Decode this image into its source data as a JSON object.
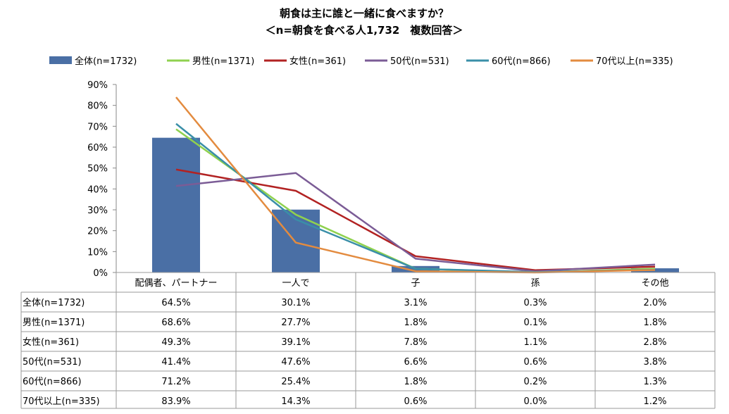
{
  "chart_data": {
    "type": "bar+line",
    "title": "朝食は主に誰と一緒に食べますか？",
    "subtitle": "＜n=朝食を食べる人1,732　複数回答＞",
    "categories": [
      "配偶者、パートナー",
      "一人で",
      "子",
      "孫",
      "その他"
    ],
    "yticks": [
      "0%",
      "10%",
      "20%",
      "30%",
      "40%",
      "50%",
      "60%",
      "70%",
      "80%",
      "90%"
    ],
    "ylim": [
      0,
      90
    ],
    "legend_position": "top",
    "series": [
      {
        "name": "全体(n=1732)",
        "kind": "bar",
        "color": "#4A6FA5",
        "values": [
          64.5,
          30.1,
          3.1,
          0.3,
          2.0
        ],
        "labels": [
          "64.5%",
          "30.1%",
          "3.1%",
          "0.3%",
          "2.0%"
        ]
      },
      {
        "name": "男性(n=1371)",
        "kind": "line",
        "color": "#8FD14F",
        "values": [
          68.6,
          27.7,
          1.8,
          0.1,
          1.8
        ],
        "labels": [
          "68.6%",
          "27.7%",
          "1.8%",
          "0.1%",
          "1.8%"
        ]
      },
      {
        "name": "女性(n=361)",
        "kind": "line",
        "color": "#B22222",
        "values": [
          49.3,
          39.1,
          7.8,
          1.1,
          2.8
        ],
        "labels": [
          "49.3%",
          "39.1%",
          "7.8%",
          "1.1%",
          "2.8%"
        ]
      },
      {
        "name": "50代(n=531)",
        "kind": "line",
        "color": "#7B5C96",
        "values": [
          41.4,
          47.6,
          6.6,
          0.6,
          3.8
        ],
        "labels": [
          "41.4%",
          "47.6%",
          "6.6%",
          "0.6%",
          "3.8%"
        ]
      },
      {
        "name": "60代(n=866)",
        "kind": "line",
        "color": "#3A8FA8",
        "values": [
          71.2,
          25.4,
          1.8,
          0.2,
          1.3
        ],
        "labels": [
          "71.2%",
          "25.4%",
          "1.8%",
          "0.2%",
          "1.3%"
        ]
      },
      {
        "name": "70代以上(n=335)",
        "kind": "line",
        "color": "#E38B3F",
        "values": [
          83.9,
          14.3,
          0.6,
          0.0,
          1.2
        ],
        "labels": [
          "83.9%",
          "14.3%",
          "0.6%",
          "0.0%",
          "1.2%"
        ]
      }
    ]
  }
}
